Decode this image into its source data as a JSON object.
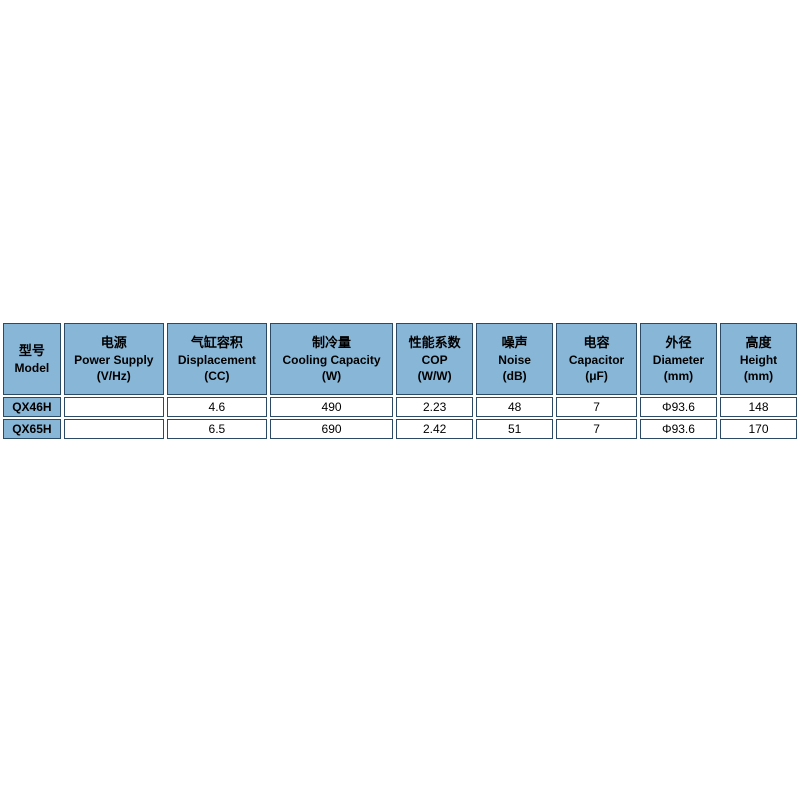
{
  "table": {
    "header_bg": "#88b6d6",
    "border_color": "#2a4a66",
    "cell_bg": "#ffffff",
    "font_family": "Arial",
    "header_fontsize": 12,
    "cell_fontsize": 12,
    "columns": [
      {
        "cn": "型号",
        "en": "Model",
        "unit": ""
      },
      {
        "cn": "电源",
        "en": "Power Supply",
        "unit": "(V/Hz)"
      },
      {
        "cn": "气缸容积",
        "en": "Displacement",
        "unit": "(CC)"
      },
      {
        "cn": "制冷量",
        "en": "Cooling Capacity",
        "unit": "(W)"
      },
      {
        "cn": "性能系数",
        "en": "COP",
        "unit": "(W/W)"
      },
      {
        "cn": "噪声",
        "en": "Noise",
        "unit": "(dB)"
      },
      {
        "cn": "电容",
        "en": "Capacitor",
        "unit": "(μF)"
      },
      {
        "cn": "外径",
        "en": "Diameter",
        "unit": "(mm)"
      },
      {
        "cn": "高度",
        "en": "Height",
        "unit": "(mm)"
      }
    ],
    "rows": [
      {
        "model": "QX46H",
        "power": "",
        "disp": "4.6",
        "cool": "490",
        "cop": "2.23",
        "noise": "48",
        "cap": "7",
        "dia": "Φ93.6",
        "height": "148"
      },
      {
        "model": "QX65H",
        "power": "",
        "disp": "6.5",
        "cool": "690",
        "cop": "2.42",
        "noise": "51",
        "cap": "7",
        "dia": "Φ93.6",
        "height": "170"
      }
    ],
    "col_widths_pct": [
      7.5,
      13,
      13,
      16,
      10,
      10,
      10.5,
      10,
      10
    ]
  }
}
